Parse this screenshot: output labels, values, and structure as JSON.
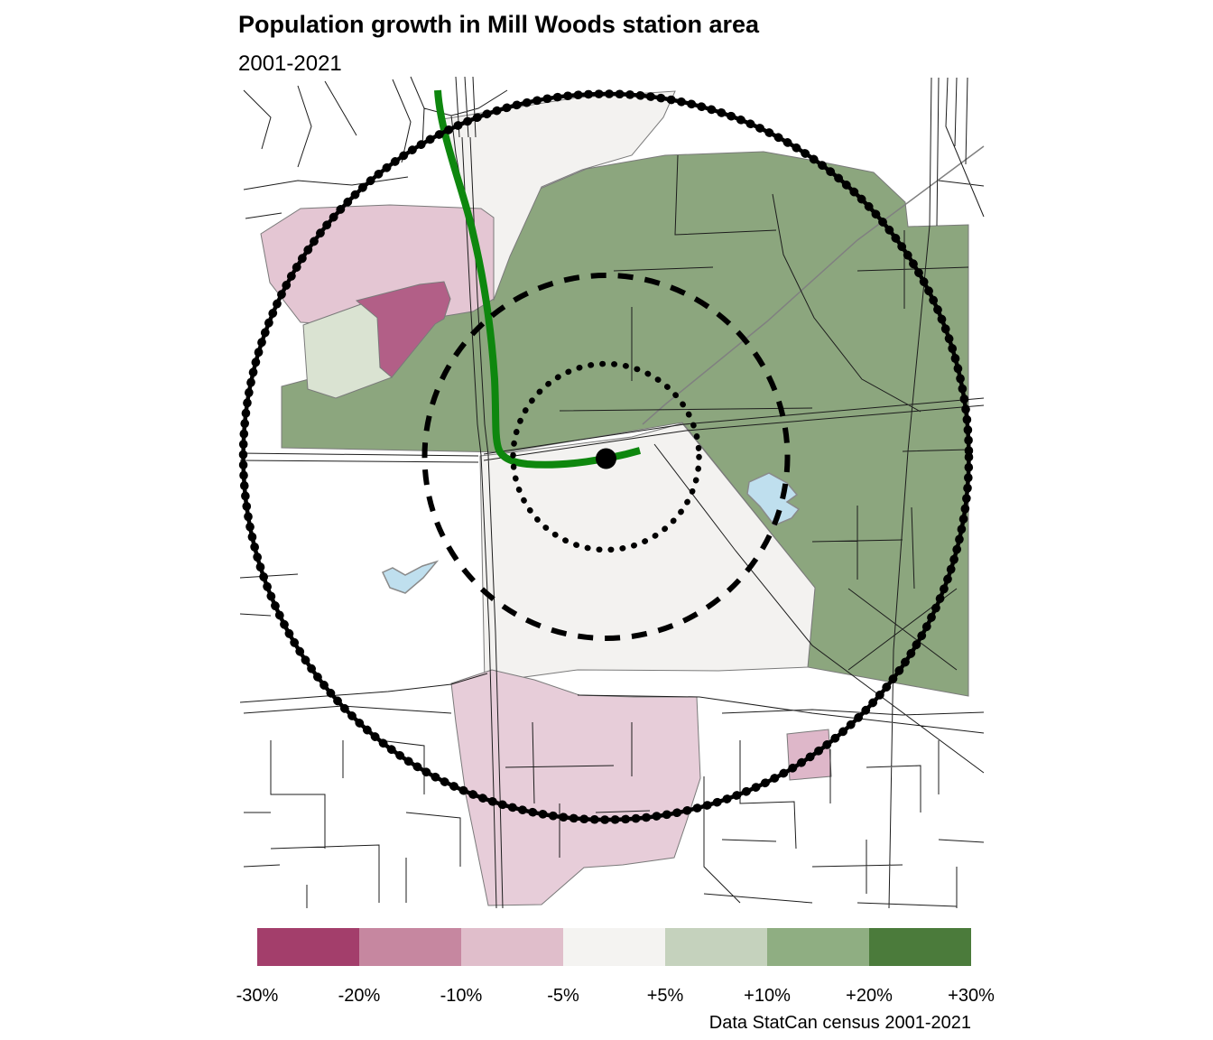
{
  "title": "Population growth in Mill Woods station area",
  "subtitle": "2001-2021",
  "caption": "Data StatCan census 2001-2021",
  "legend": {
    "tick_labels": [
      "-30%",
      "-20%",
      "-10%",
      "-5%",
      "+5%",
      "+10%",
      "+20%",
      "+30%"
    ],
    "colors": [
      "#a33e6b",
      "#c687a0",
      "#e0becb",
      "#f4f3f1",
      "#c5d2bd",
      "#8fae82",
      "#4b7b3b"
    ]
  },
  "map": {
    "regions": [
      {
        "name": "northeast-growth-area",
        "growth_bin": "+10% to +20%",
        "color": "#8ca67e"
      },
      {
        "name": "north-flat-area",
        "growth_bin": "-5% to +5%",
        "color": "#f3f2f0"
      },
      {
        "name": "northwest-decline-area",
        "growth_bin": "-10% to -5%",
        "color": "#e4c6d3"
      },
      {
        "name": "northwest-strong-decline-area",
        "growth_bin": "-30% to -20%",
        "color": "#b25f87"
      },
      {
        "name": "west-mild-growth-area",
        "growth_bin": "+5% to +10%",
        "color": "#dae3d2"
      },
      {
        "name": "central-flat-area",
        "growth_bin": "-5% to +5%",
        "color": "#f3f2f0"
      },
      {
        "name": "south-decline-area",
        "growth_bin": "-10% to -5%",
        "color": "#e7cdd9"
      },
      {
        "name": "southeast-small-decline-area",
        "growth_bin": "-10% to -5%",
        "color": "#deb7c9"
      }
    ],
    "water_color": "#bfdfee",
    "water_outline_color": "#8a8a8a",
    "transit_line_color": "#0e870e",
    "road_color": "#1c1c1c",
    "secondary_road_color": "#808080",
    "ring_color": "#000000"
  },
  "chart_data": {
    "type": "choropleth-map",
    "title": "Population growth in Mill Woods station area",
    "subtitle": "2001-2021",
    "legend_bin_edges": [
      "-30%",
      "-20%",
      "-10%",
      "-5%",
      "+5%",
      "+10%",
      "+20%",
      "+30%"
    ],
    "bin_colors": [
      "#a33e6b",
      "#c687a0",
      "#e0becb",
      "#f4f3f1",
      "#c5d2bd",
      "#8fae82",
      "#4b7b3b"
    ],
    "regions": [
      {
        "area": "northeast of station",
        "growth": "+10% to +20%"
      },
      {
        "area": "north strip between LRT line and growth area",
        "growth": "-5% to +5%"
      },
      {
        "area": "northwest neighbourhood",
        "growth": "-10% to -5%"
      },
      {
        "area": "northwest pocket",
        "growth": "-30% to -20%"
      },
      {
        "area": "west pocket",
        "growth": "+5% to +10%"
      },
      {
        "area": "central / south of station",
        "growth": "-5% to +5%"
      },
      {
        "area": "south neighbourhood",
        "growth": "-10% to -5%"
      },
      {
        "area": "southeast pocket",
        "growth": "-10% to -5%"
      }
    ],
    "overlays": [
      "solid outer radius ring",
      "dashed middle radius ring",
      "dotted inner radius ring",
      "station point",
      "green LRT line"
    ],
    "source_note": "Data StatCan census 2001-2021"
  }
}
